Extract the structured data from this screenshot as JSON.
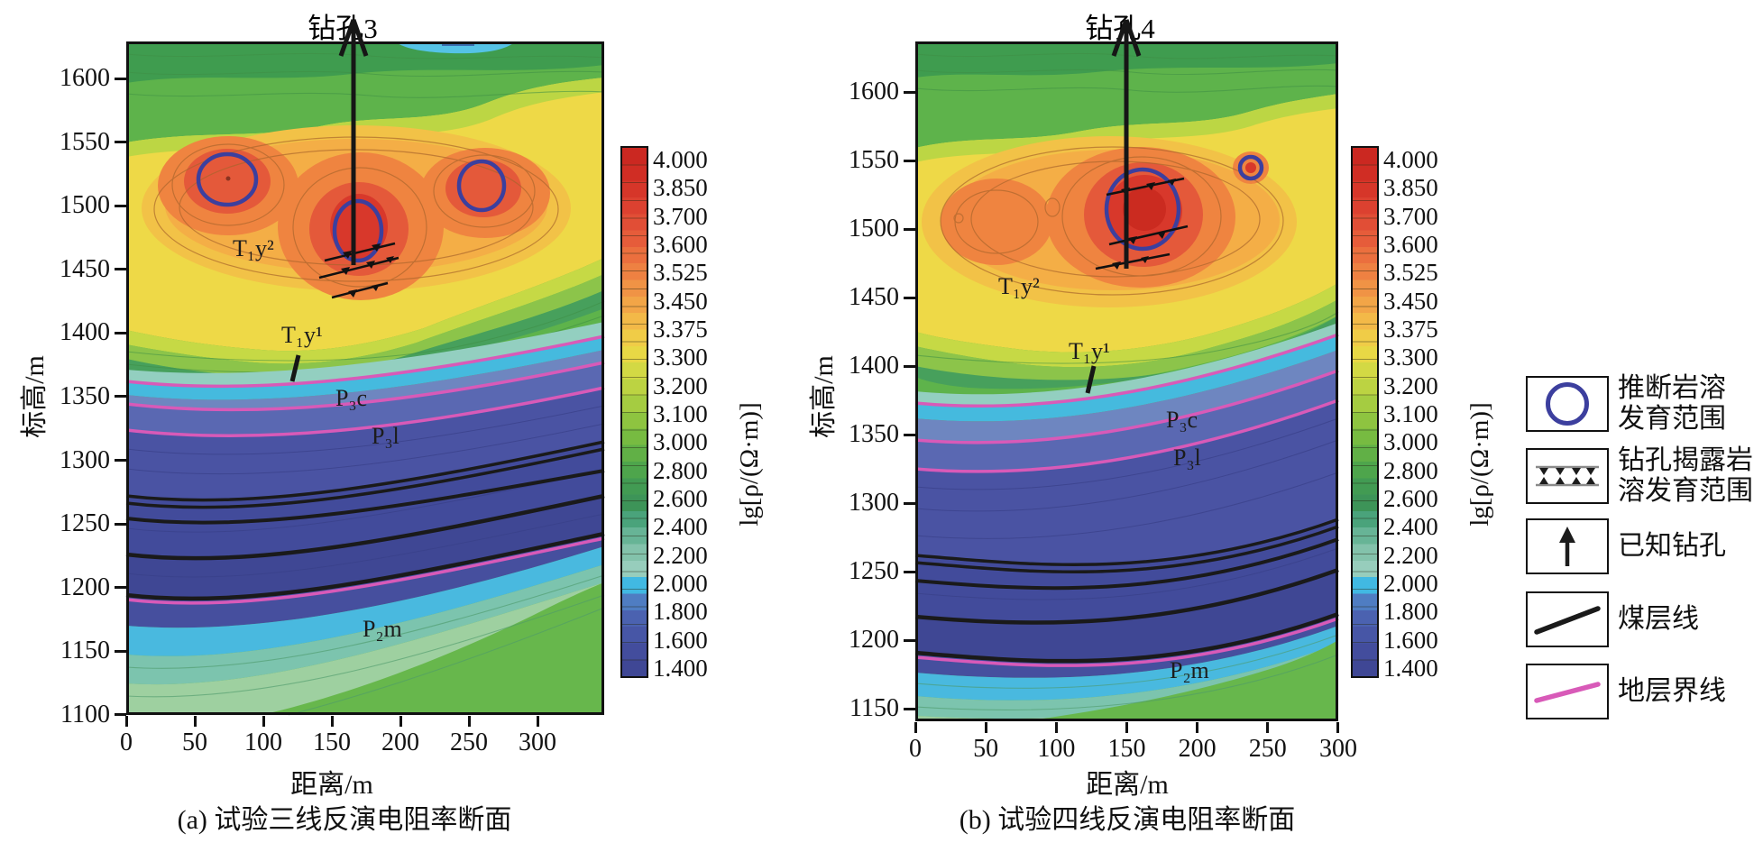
{
  "panels": [
    {
      "id": "a",
      "borehole_title": "钻孔3",
      "ylabel": "标高/m",
      "xlabel": "距离/m",
      "caption": "(a) 试验三线反演电阻率断面",
      "y_ticks": [
        "1600",
        "1550",
        "1500",
        "1450",
        "1400",
        "1350",
        "1300",
        "1250",
        "1200",
        "1150",
        "1100"
      ],
      "x_ticks": [
        "0",
        "50",
        "100",
        "150",
        "200",
        "250",
        "300"
      ],
      "labels": {
        "t1y2": "T₁y²",
        "t1y1": "T₁y¹",
        "p3c": "P₃c",
        "p3l": "P₃l",
        "p2m": "P₂m"
      }
    },
    {
      "id": "b",
      "borehole_title": "钻孔4",
      "ylabel": "标高/m",
      "xlabel": "距离/m",
      "caption": "(b) 试验四线反演电阻率断面",
      "y_ticks": [
        "1600",
        "1550",
        "1500",
        "1450",
        "1400",
        "1350",
        "1300",
        "1250",
        "1200",
        "1150"
      ],
      "x_ticks": [
        "0",
        "50",
        "100",
        "150",
        "200",
        "250",
        "300"
      ],
      "labels": {
        "t1y2": "T₁y²",
        "t1y1": "T₁y¹",
        "p3c": "P₃c",
        "p3l": "P₃l",
        "p2m": "P₂m"
      }
    }
  ],
  "colorbar": {
    "unit": "lg[ρ/(Ω·m)]",
    "labels": [
      "4.000",
      "3.850",
      "3.700",
      "3.600",
      "3.525",
      "3.450",
      "3.375",
      "3.300",
      "3.200",
      "3.100",
      "3.000",
      "2.800",
      "2.600",
      "2.400",
      "2.200",
      "2.000",
      "1.800",
      "1.600",
      "1.400"
    ],
    "colors": [
      "#cb2821",
      "#d02d24",
      "#d63629",
      "#dc4130",
      "#e14e36",
      "#e65c3a",
      "#eb6f3e",
      "#ee8142",
      "#f09345",
      "#f2a547",
      "#f3b948",
      "#f0cc47",
      "#e8d845",
      "#d3d944",
      "#bcd342",
      "#a5cc41",
      "#8ec440",
      "#77bb41",
      "#61b046",
      "#4ea54c",
      "#429b53",
      "#3d9458",
      "#4aa37b",
      "#67b496",
      "#83c2ab",
      "#97cdbc",
      "#41b9e2",
      "#4f7dc2",
      "#4b62b0",
      "#4756a6",
      "#434d9d",
      "#3f4795"
    ]
  },
  "legend": {
    "items": [
      {
        "symbol": "inferred-karst-circle",
        "line1": "推断岩溶",
        "line2": "发育范围"
      },
      {
        "symbol": "borehole-revealed-karst-hatch",
        "line1": "钻孔揭露岩",
        "line2": "溶发育范围"
      },
      {
        "symbol": "known-borehole-arrow",
        "line1": "已知钻孔",
        "line2": ""
      },
      {
        "symbol": "coal-seam-line",
        "line1": "煤层线",
        "line2": ""
      },
      {
        "symbol": "strata-boundary-line",
        "line1": "地层界线",
        "line2": ""
      }
    ],
    "colors": {
      "karst_ring": "#3c3f9e",
      "coal_line": "#1a1a1a",
      "boundary_line": "#d85ab8"
    }
  },
  "chart_data": [
    {
      "type": "heatmap",
      "subtype": "inverted-resistivity-contour-section",
      "title": "(a) 试验三线反演电阻率断面",
      "borehole": "钻孔3",
      "xlabel": "距离/m",
      "ylabel": "标高/m",
      "xlim": [
        0,
        350
      ],
      "x_tick_labels": [
        0,
        50,
        100,
        150,
        200,
        250,
        300
      ],
      "ylim": [
        1100,
        1630
      ],
      "y_tick_labels": [
        1600,
        1550,
        1500,
        1450,
        1400,
        1350,
        1300,
        1250,
        1200,
        1150,
        1100
      ],
      "colorbar_label": "lg[ρ/(Ω·m)]",
      "colorbar_levels": [
        4.0,
        3.85,
        3.7,
        3.6,
        3.525,
        3.45,
        3.375,
        3.3,
        3.2,
        3.1,
        3.0,
        2.8,
        2.6,
        2.4,
        2.2,
        2.0,
        1.8,
        1.6,
        1.4
      ],
      "legend_position": "right",
      "grid": false,
      "features": {
        "known_borehole_x_m": 167,
        "high_resistivity_zone": {
          "elevation_range_m": [
            1440,
            1570
          ],
          "lg_rho_max": 3.85
        },
        "inferred_karst_zones": [
          {
            "x_m": 74,
            "elevation_m": 1520
          },
          {
            "x_m": 170,
            "elevation_m": 1480,
            "note": "at borehole, hatched (revealed by drilling)"
          },
          {
            "x_m": 260,
            "elevation_m": 1515
          }
        ],
        "low_resistivity_zone": {
          "elevation_range_m": [
            1230,
            1380
          ],
          "lg_rho_min": 1.4
        },
        "strata_labels_top_to_bottom": [
          "T₁y²",
          "T₁y¹",
          "P₃c",
          "P₃l",
          "P₂m"
        ],
        "coal_seam_lines": 4,
        "strata_boundary_lines": 4,
        "strata_dip": "layers rise gently toward the right (~50 m over section)"
      }
    },
    {
      "type": "heatmap",
      "subtype": "inverted-resistivity-contour-section",
      "title": "(b) 试验四线反演电阻率断面",
      "borehole": "钻孔4",
      "xlabel": "距离/m",
      "ylabel": "标高/m",
      "xlim": [
        0,
        300
      ],
      "x_tick_labels": [
        0,
        50,
        100,
        150,
        200,
        250,
        300
      ],
      "ylim": [
        1141,
        1637
      ],
      "y_tick_labels": [
        1600,
        1550,
        1500,
        1450,
        1400,
        1350,
        1300,
        1250,
        1200,
        1150
      ],
      "colorbar_label": "lg[ρ/(Ω·m)]",
      "colorbar_levels": [
        4.0,
        3.85,
        3.7,
        3.6,
        3.525,
        3.45,
        3.375,
        3.3,
        3.2,
        3.1,
        3.0,
        2.8,
        2.6,
        2.4,
        2.2,
        2.0,
        1.8,
        1.6,
        1.4
      ],
      "legend_position": "right",
      "grid": false,
      "features": {
        "known_borehole_x_m": 150,
        "high_resistivity_zone": {
          "elevation_range_m": [
            1440,
            1570
          ],
          "lg_rho_max": 4.0
        },
        "inferred_karst_zones": [
          {
            "x_m": 162,
            "elevation_m": 1515,
            "note": "at borehole, hatched (revealed by drilling)"
          },
          {
            "x_m": 237,
            "elevation_m": 1545
          }
        ],
        "low_resistivity_zone": {
          "elevation_range_m": [
            1250,
            1390
          ],
          "lg_rho_min": 1.4
        },
        "strata_labels_top_to_bottom": [
          "T₁y²",
          "T₁y¹",
          "P₃c",
          "P₃l",
          "P₂m"
        ],
        "coal_seam_lines": 4,
        "strata_boundary_lines": 4,
        "strata_dip": "layers rise gently toward the right (~50 m over section)"
      }
    }
  ]
}
